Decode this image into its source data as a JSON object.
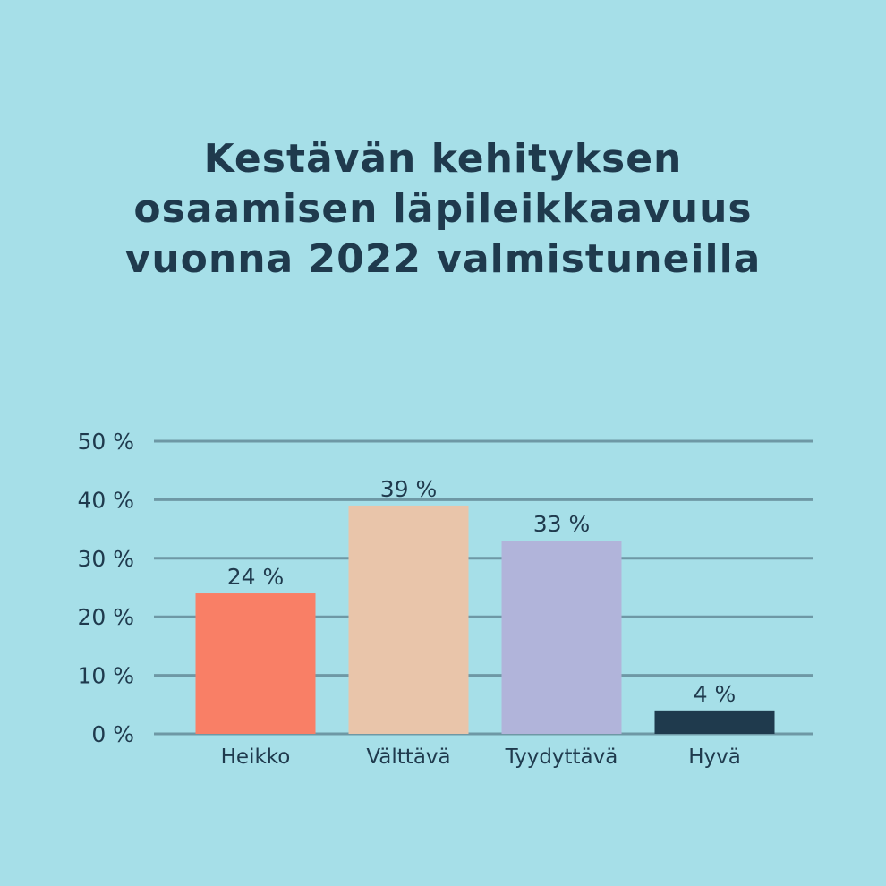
{
  "chart_data": {
    "type": "bar",
    "title_lines": [
      "Kestävän kehityksen",
      "osaamisen läpileikkaavuus",
      "vuonna 2022 valmistuneilla"
    ],
    "categories": [
      "Heikko",
      "Välttävä",
      "Tyydyttävä",
      "Hyvä"
    ],
    "values": [
      24,
      39,
      33,
      4
    ],
    "value_labels": [
      "24 %",
      "39 %",
      "33 %",
      "4 %"
    ],
    "bar_colors": [
      "#f97f66",
      "#e9c5aa",
      "#b1b4da",
      "#1f3a4d"
    ],
    "y_ticks": [
      0,
      10,
      20,
      30,
      40,
      50
    ],
    "y_tick_labels": [
      "0 %",
      "10 %",
      "20 %",
      "30 %",
      "40 %",
      "50 %"
    ],
    "ylim": [
      0,
      50
    ],
    "grid": true,
    "text_color": "#1f3a4d",
    "grid_color": "#6e98a5",
    "background": "#a6dfe8"
  }
}
